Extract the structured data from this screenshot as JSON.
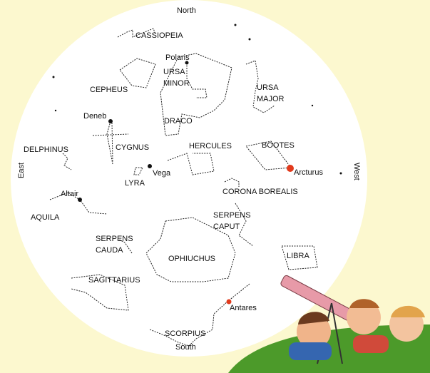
{
  "directions": [
    "North",
    "South",
    "East",
    "West"
  ],
  "stars": [
    "Polaris",
    "Deneb",
    "Vega",
    "Altair",
    "Arcturus",
    "Antares"
  ],
  "constellations": [
    {
      "lines": [
        "CASSIOPEIA"
      ]
    },
    {
      "lines": [
        "CEPHEUS"
      ]
    },
    {
      "lines": [
        "URSA",
        "MINOR"
      ]
    },
    {
      "lines": [
        "URSA",
        "MAJOR"
      ]
    },
    {
      "lines": [
        "DRACO"
      ]
    },
    {
      "lines": [
        "DELPHINUS"
      ]
    },
    {
      "lines": [
        "CYGNUS"
      ]
    },
    {
      "lines": [
        "LYRA"
      ]
    },
    {
      "lines": [
        "HERCULES"
      ]
    },
    {
      "lines": [
        "BOOTES"
      ]
    },
    {
      "lines": [
        "CORONA BOREALIS"
      ]
    },
    {
      "lines": [
        "AQUILA"
      ]
    },
    {
      "lines": [
        "SERPENS",
        "CAUDA"
      ]
    },
    {
      "lines": [
        "SERPENS",
        "CAPUT"
      ]
    },
    {
      "lines": [
        "OPHIUCHUS"
      ]
    },
    {
      "lines": [
        "LIBRA"
      ]
    },
    {
      "lines": [
        "SAGITTARIUS"
      ]
    },
    {
      "lines": [
        "SCORPIUS"
      ]
    }
  ]
}
